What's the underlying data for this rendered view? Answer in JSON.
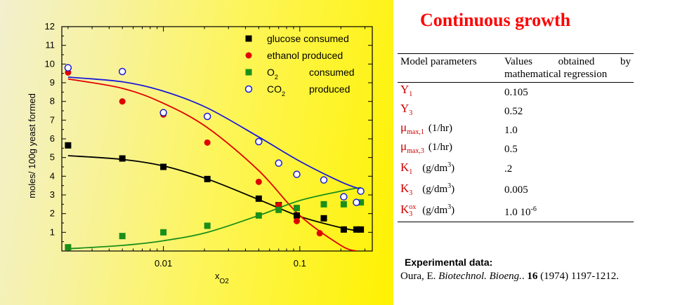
{
  "title": "Continuous growth",
  "table": {
    "header_col1": "Model parameters",
    "header_col2": "Values obtained by mathematical regression",
    "rows": [
      {
        "name": "Y",
        "sub": "1",
        "sup": "",
        "unit": "",
        "value": "0.105"
      },
      {
        "name": "Y",
        "sub": "3",
        "sup": "",
        "unit": "",
        "value": "0.52"
      },
      {
        "name": "μ",
        "sub": "max,1",
        "sup": "",
        "unit": "(1/hr)",
        "value": "1.0"
      },
      {
        "name": "μ",
        "sub": "max,3",
        "sup": "",
        "unit": "(1/hr)",
        "value": "0.5"
      },
      {
        "name": "K",
        "sub": "1",
        "sup": "",
        "unit": "(g/dm",
        "unit_sup": "3",
        "value": ".2"
      },
      {
        "name": "K",
        "sub": "3",
        "sup": "",
        "unit": "(g/dm",
        "unit_sup": "3",
        "value": "0.005"
      },
      {
        "name": "K",
        "sub": "3",
        "sup": "ox",
        "unit": "(g/dm",
        "unit_sup": "3",
        "value": "1.0 10",
        "value_sup": "-6"
      }
    ]
  },
  "notes": {
    "heading": "Experimental data:",
    "author": "Oura, E. ",
    "journal": "Biotechnol. Bioeng.",
    "sep": ". ",
    "volume": "16",
    "rest": "  (1974) 1197-1212."
  },
  "chart_data": {
    "type": "scatter",
    "x_scale": "log",
    "xlim": [
      0.0018,
      0.34
    ],
    "ylim": [
      0,
      12
    ],
    "xlabel": "x",
    "xlabel_sub": "O2",
    "ylabel": "moles/ 100g yeast formed",
    "x_tick_labels": [
      {
        "value": 0.01,
        "label": "0.01"
      },
      {
        "value": 0.1,
        "label": "0.1"
      }
    ],
    "y_ticks": [
      1,
      2,
      3,
      4,
      5,
      6,
      7,
      8,
      9,
      10,
      11,
      12
    ],
    "colors": {
      "glucose": "#000000",
      "ethanol": "#e00000",
      "o2": "#1a8f1a",
      "co2": "#1a1ad8"
    },
    "series": [
      {
        "name": "glucose consumed",
        "marker": "square",
        "color": "#000000",
        "points": [
          [
            0.002,
            5.65
          ],
          [
            0.005,
            4.95
          ],
          [
            0.01,
            4.5
          ],
          [
            0.021,
            3.85
          ],
          [
            0.05,
            2.8
          ],
          [
            0.07,
            2.45
          ],
          [
            0.095,
            1.9
          ],
          [
            0.15,
            1.75
          ],
          [
            0.21,
            1.15
          ],
          [
            0.26,
            1.15
          ],
          [
            0.28,
            1.15
          ]
        ],
        "fit": [
          [
            0.002,
            5.1
          ],
          [
            0.005,
            4.9
          ],
          [
            0.01,
            4.55
          ],
          [
            0.021,
            3.85
          ],
          [
            0.05,
            2.75
          ],
          [
            0.1,
            1.85
          ],
          [
            0.2,
            1.25
          ],
          [
            0.28,
            1.05
          ]
        ]
      },
      {
        "name": "ethanol  produced",
        "marker": "circle",
        "color": "#e00000",
        "points": [
          [
            0.002,
            9.55
          ],
          [
            0.005,
            8.0
          ],
          [
            0.01,
            7.3
          ],
          [
            0.021,
            5.8
          ],
          [
            0.05,
            3.7
          ],
          [
            0.07,
            2.45
          ],
          [
            0.095,
            1.6
          ],
          [
            0.14,
            0.95
          ]
        ],
        "fit": [
          [
            0.002,
            9.2
          ],
          [
            0.005,
            8.7
          ],
          [
            0.01,
            7.9
          ],
          [
            0.021,
            6.6
          ],
          [
            0.05,
            4.3
          ],
          [
            0.1,
            1.9
          ],
          [
            0.2,
            0.3
          ],
          [
            0.26,
            0
          ]
        ]
      },
      {
        "name": "O",
        "name_sub": "2",
        "name_tail": "consumed",
        "marker": "square",
        "color": "#1a8f1a",
        "points": [
          [
            0.002,
            0.2
          ],
          [
            0.005,
            0.8
          ],
          [
            0.01,
            1.0
          ],
          [
            0.021,
            1.35
          ],
          [
            0.05,
            1.9
          ],
          [
            0.07,
            2.2
          ],
          [
            0.095,
            2.3
          ],
          [
            0.15,
            2.5
          ],
          [
            0.21,
            2.5
          ],
          [
            0.28,
            2.6
          ]
        ],
        "fit": [
          [
            0.002,
            0.12
          ],
          [
            0.005,
            0.3
          ],
          [
            0.01,
            0.55
          ],
          [
            0.021,
            1.0
          ],
          [
            0.05,
            1.9
          ],
          [
            0.1,
            2.7
          ],
          [
            0.2,
            3.2
          ],
          [
            0.28,
            3.4
          ]
        ]
      },
      {
        "name": "CO",
        "name_sub": "2",
        "name_tail": "produced",
        "marker": "open-circle",
        "color": "#1a1ad8",
        "points": [
          [
            0.002,
            9.8
          ],
          [
            0.005,
            9.6
          ],
          [
            0.01,
            7.4
          ],
          [
            0.021,
            7.2
          ],
          [
            0.05,
            5.85
          ],
          [
            0.07,
            4.7
          ],
          [
            0.095,
            4.1
          ],
          [
            0.15,
            3.8
          ],
          [
            0.21,
            2.9
          ],
          [
            0.26,
            2.6
          ],
          [
            0.28,
            3.2
          ]
        ],
        "fit": [
          [
            0.002,
            9.3
          ],
          [
            0.005,
            9.05
          ],
          [
            0.01,
            8.55
          ],
          [
            0.021,
            7.65
          ],
          [
            0.05,
            6.1
          ],
          [
            0.1,
            4.8
          ],
          [
            0.2,
            3.7
          ],
          [
            0.28,
            3.3
          ]
        ]
      }
    ]
  }
}
